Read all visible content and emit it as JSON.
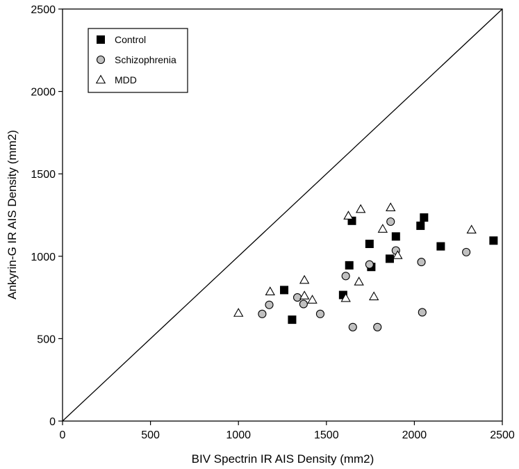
{
  "chart_data": {
    "type": "scatter",
    "title": "",
    "xlabel": "BIV Spectrin IR AIS Density (mm2)",
    "ylabel": "Ankyrin-G IR AIS Density (mm2)",
    "xlim": [
      0,
      2500
    ],
    "ylim": [
      0,
      2500
    ],
    "x_ticks": [
      "0",
      "500",
      "1000",
      "1500",
      "2000",
      "2500"
    ],
    "y_ticks": [
      "0",
      "500",
      "1000",
      "1500",
      "2000",
      "2500"
    ],
    "grid": false,
    "legend_position": "top-left",
    "reference_line": "identity",
    "series": [
      {
        "name": "Control",
        "marker": "filled-square",
        "color": "#000000",
        "points": [
          [
            1260,
            795
          ],
          [
            1305,
            615
          ],
          [
            1595,
            765
          ],
          [
            1630,
            945
          ],
          [
            1645,
            1215
          ],
          [
            1745,
            1075
          ],
          [
            1755,
            935
          ],
          [
            1860,
            985
          ],
          [
            1895,
            1120
          ],
          [
            2035,
            1185
          ],
          [
            2055,
            1235
          ],
          [
            2150,
            1060
          ],
          [
            2450,
            1095
          ]
        ]
      },
      {
        "name": "Schizophrenia",
        "marker": "gray-circle",
        "color": "#c0c0c0",
        "points": [
          [
            1135,
            650
          ],
          [
            1175,
            705
          ],
          [
            1335,
            750
          ],
          [
            1370,
            710
          ],
          [
            1465,
            650
          ],
          [
            1610,
            880
          ],
          [
            1650,
            570
          ],
          [
            1745,
            950
          ],
          [
            1790,
            570
          ],
          [
            1865,
            1210
          ],
          [
            1895,
            1035
          ],
          [
            2040,
            965
          ],
          [
            2045,
            660
          ],
          [
            2295,
            1025
          ]
        ]
      },
      {
        "name": "MDD",
        "marker": "open-triangle",
        "color": "#ffffff",
        "points": [
          [
            1000,
            655
          ],
          [
            1180,
            785
          ],
          [
            1375,
            855
          ],
          [
            1375,
            760
          ],
          [
            1420,
            735
          ],
          [
            1610,
            745
          ],
          [
            1625,
            1245
          ],
          [
            1685,
            845
          ],
          [
            1695,
            1285
          ],
          [
            1770,
            755
          ],
          [
            1820,
            1165
          ],
          [
            1865,
            1295
          ],
          [
            1905,
            1005
          ],
          [
            2325,
            1160
          ]
        ]
      }
    ]
  }
}
